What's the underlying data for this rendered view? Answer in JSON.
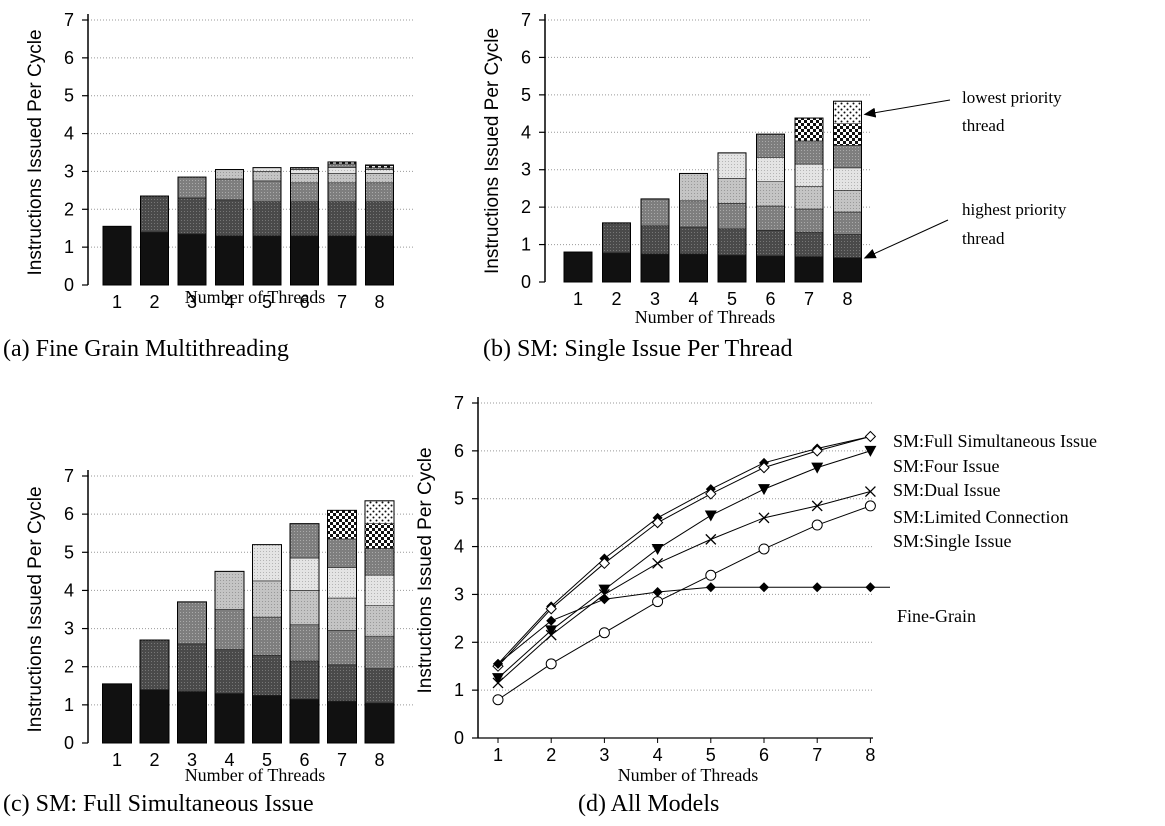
{
  "chart_data": [
    {
      "type": "bar",
      "stacked": true,
      "caption": "(a)  Fine Grain Multithreading",
      "xlabel": "Number of Threads",
      "ylabel": "Instructions Issued Per Cycle",
      "ylim": [
        0,
        7
      ],
      "yticks": [
        "0",
        "1",
        "2",
        "3",
        "4",
        "5",
        "6",
        "7"
      ],
      "categories": [
        "1",
        "2",
        "3",
        "4",
        "5",
        "6",
        "7",
        "8"
      ],
      "grid": "horizontal dotted",
      "stacks": [
        [
          1.55
        ],
        [
          1.4,
          0.95
        ],
        [
          1.35,
          0.95,
          0.55
        ],
        [
          1.3,
          0.95,
          0.55,
          0.25
        ],
        [
          1.3,
          0.9,
          0.55,
          0.25,
          0.1
        ],
        [
          1.3,
          0.9,
          0.5,
          0.25,
          0.1,
          0.05
        ],
        [
          1.3,
          0.9,
          0.5,
          0.25,
          0.15,
          0.1,
          0.05
        ],
        [
          1.3,
          0.9,
          0.5,
          0.25,
          0.1,
          0.05,
          0.05,
          0.02
        ]
      ]
    },
    {
      "type": "bar",
      "stacked": true,
      "caption": "(b)  SM: Single Issue Per Thread",
      "xlabel": "Number of Threads",
      "ylabel": "Instructions Issued Per Cycle",
      "ylim": [
        0,
        7
      ],
      "yticks": [
        "0",
        "1",
        "2",
        "3",
        "4",
        "5",
        "6",
        "7"
      ],
      "categories": [
        "1",
        "2",
        "3",
        "4",
        "5",
        "6",
        "7",
        "8"
      ],
      "grid": "horizontal dotted",
      "annotations": [
        {
          "text": [
            "lowest priority",
            "thread"
          ]
        },
        {
          "text": [
            "highest priority",
            "thread"
          ]
        }
      ],
      "stacks": [
        [
          0.8
        ],
        [
          0.78,
          0.8
        ],
        [
          0.75,
          0.75,
          0.72
        ],
        [
          0.75,
          0.72,
          0.7,
          0.73
        ],
        [
          0.72,
          0.7,
          0.68,
          0.67,
          0.68
        ],
        [
          0.7,
          0.68,
          0.65,
          0.65,
          0.65,
          0.62
        ],
        [
          0.68,
          0.65,
          0.62,
          0.6,
          0.6,
          0.62,
          0.61
        ],
        [
          0.65,
          0.62,
          0.6,
          0.58,
          0.6,
          0.6,
          0.58,
          0.6
        ]
      ]
    },
    {
      "type": "bar",
      "stacked": true,
      "caption": "(c)  SM:  Full Simultaneous Issue",
      "xlabel": "Number of Threads",
      "ylabel": "Instructions Issued Per Cycle",
      "ylim": [
        0,
        7
      ],
      "yticks": [
        "0",
        "1",
        "2",
        "3",
        "4",
        "5",
        "6",
        "7"
      ],
      "categories": [
        "1",
        "2",
        "3",
        "4",
        "5",
        "6",
        "7",
        "8"
      ],
      "grid": "horizontal dotted",
      "stacks": [
        [
          1.55
        ],
        [
          1.4,
          1.3
        ],
        [
          1.35,
          1.25,
          1.1
        ],
        [
          1.3,
          1.15,
          1.05,
          1.0
        ],
        [
          1.25,
          1.05,
          1.0,
          0.95,
          0.95
        ],
        [
          1.15,
          1.0,
          0.95,
          0.9,
          0.85,
          0.9
        ],
        [
          1.1,
          0.95,
          0.9,
          0.85,
          0.8,
          0.75,
          0.75
        ],
        [
          1.05,
          0.9,
          0.85,
          0.8,
          0.8,
          0.7,
          0.65,
          0.6
        ]
      ]
    },
    {
      "type": "line",
      "caption": "(d)  All Models",
      "xlabel": "Number of Threads",
      "ylabel": "Instructions Issued Per Cycle",
      "ylim": [
        0,
        7
      ],
      "yticks": [
        "0",
        "1",
        "2",
        "3",
        "4",
        "5",
        "6",
        "7"
      ],
      "x": [
        1,
        2,
        3,
        4,
        5,
        6,
        7,
        8
      ],
      "grid": "horizontal dotted",
      "series": [
        {
          "name": "SM:Full Simultaneous Issue",
          "marker": "diamond",
          "values": [
            1.55,
            2.75,
            3.75,
            4.6,
            5.2,
            5.75,
            6.05,
            6.3
          ]
        },
        {
          "name": "SM:Four Issue",
          "marker": "diamond-open",
          "values": [
            1.5,
            2.7,
            3.65,
            4.5,
            5.1,
            5.65,
            6.0,
            6.3
          ]
        },
        {
          "name": "SM:Dual Issue",
          "marker": "triangle-down",
          "values": [
            1.25,
            2.25,
            3.1,
            3.95,
            4.65,
            5.2,
            5.65,
            6.0
          ]
        },
        {
          "name": "SM:Limited Connection",
          "marker": "x",
          "values": [
            1.15,
            2.15,
            3.0,
            3.65,
            4.15,
            4.6,
            4.85,
            5.15
          ]
        },
        {
          "name": "SM:Single Issue",
          "marker": "circle-open",
          "values": [
            0.8,
            1.55,
            2.2,
            2.85,
            3.4,
            3.95,
            4.45,
            4.85
          ]
        },
        {
          "name": "Fine-Grain",
          "marker": "diamond",
          "values": [
            1.55,
            2.45,
            2.9,
            3.05,
            3.15,
            3.15,
            3.15,
            3.15
          ]
        }
      ]
    }
  ]
}
